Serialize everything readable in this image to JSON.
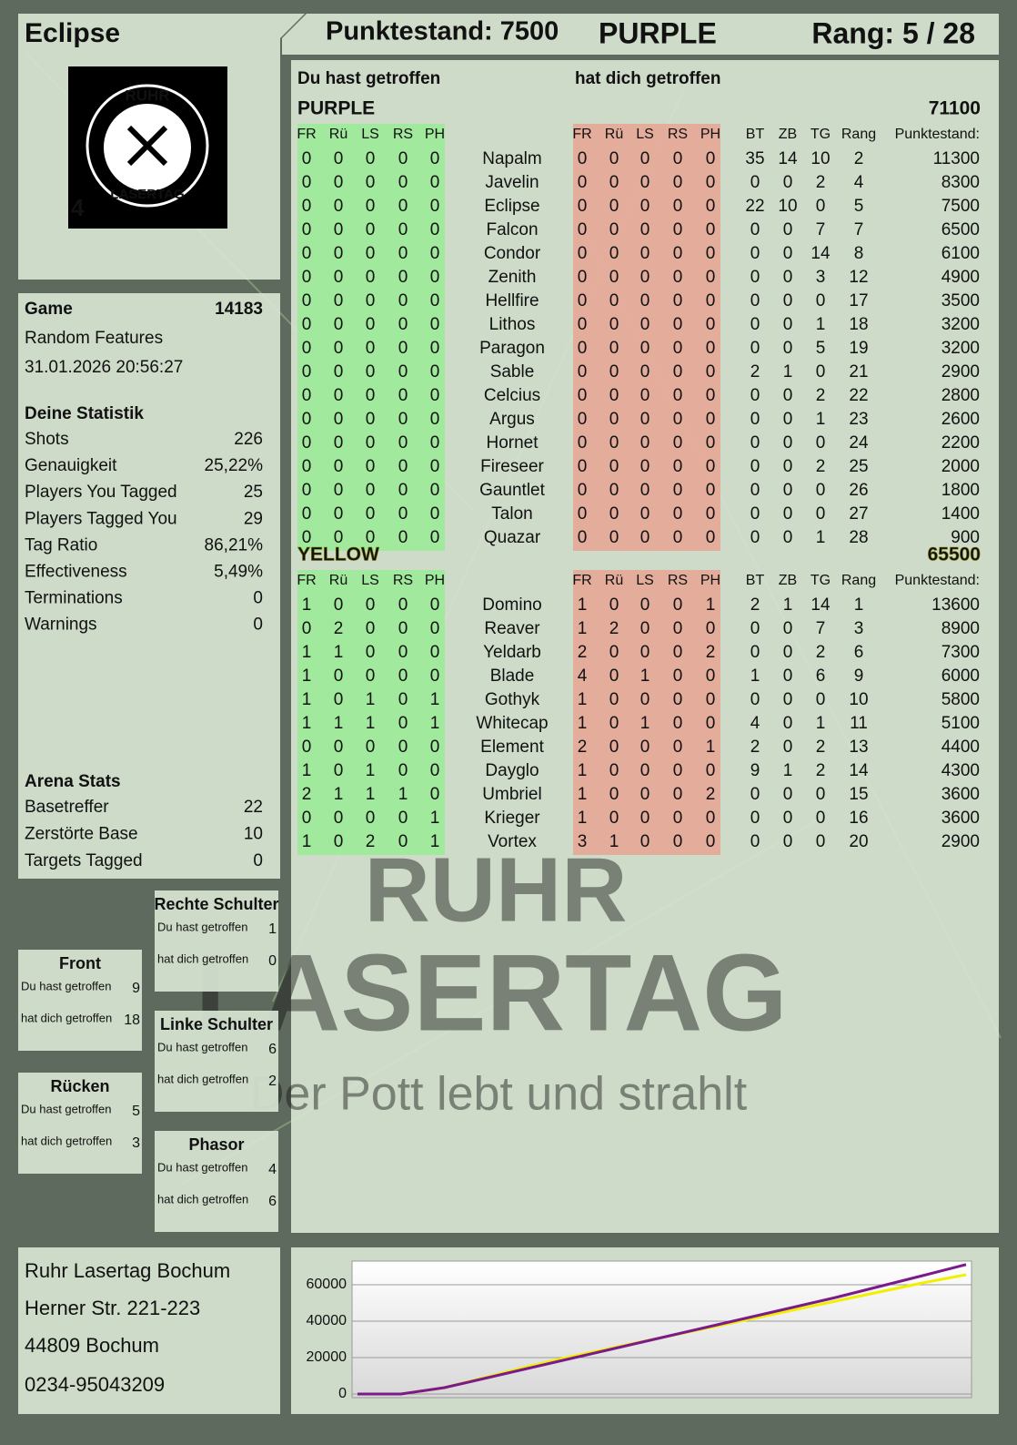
{
  "header": {
    "player": "Eclipse",
    "score": "Punktestand: 7500",
    "team": "PURPLE",
    "rank": "Rang: 5 / 28",
    "color": "#7b1a8b"
  },
  "logo": {
    "top": "RUHR",
    "bottom": "LASERTAG",
    "number": "4"
  },
  "game": {
    "label": "Game",
    "id": "14183",
    "mode": "Random Features",
    "date": "31.01.2026 20:56:27"
  },
  "stats": {
    "title": "Deine Statistik",
    "rows": [
      [
        "Shots",
        "226"
      ],
      [
        "Genauigkeit",
        "25,22%"
      ],
      [
        "Players You Tagged",
        "25"
      ],
      [
        "Players Tagged You",
        "29"
      ],
      [
        "Tag Ratio",
        "86,21%"
      ],
      [
        "Effectiveness",
        "5,49%"
      ],
      [
        "Terminations",
        "0"
      ],
      [
        "Warnings",
        "0"
      ]
    ]
  },
  "arena": {
    "title": "Arena Stats",
    "rows": [
      [
        "Basetreffer",
        "22"
      ],
      [
        "Zerstörte Base",
        "10"
      ],
      [
        "Targets Tagged",
        "0"
      ]
    ]
  },
  "zones": [
    {
      "title": "Rechte Schulter",
      "rows": [
        [
          "Du hast getroffen",
          "1"
        ],
        [
          "hat dich getroffen",
          "0"
        ]
      ]
    },
    {
      "title": "Front",
      "rows": [
        [
          "Du hast getroffen",
          "9"
        ],
        [
          "hat dich getroffen",
          "18"
        ]
      ]
    },
    {
      "title": "Linke Schulter",
      "rows": [
        [
          "Du hast getroffen",
          "6"
        ],
        [
          "hat dich getroffen",
          "2"
        ]
      ]
    },
    {
      "title": "Rücken",
      "rows": [
        [
          "Du hast getroffen",
          "5"
        ],
        [
          "hat dich getroffen",
          "3"
        ]
      ]
    },
    {
      "title": "Phasor",
      "rows": [
        [
          "Du hast getroffen",
          "4"
        ],
        [
          "hat dich getroffen",
          "6"
        ]
      ]
    }
  ],
  "address": [
    "Ruhr Lasertag Bochum",
    "Herner Str. 221-223",
    "44809 Bochum",
    "0234-95043209"
  ],
  "table": {
    "hit_heading": "Du hast getroffen",
    "got_heading": "hat dich getroffen",
    "hit_columns": [
      "FR",
      "Rü",
      "LS",
      "RS",
      "PH"
    ],
    "got_columns": [
      "FR",
      "Rü",
      "LS",
      "RS",
      "PH"
    ],
    "stat_columns": [
      "BT",
      "ZB",
      "TG",
      "Rang",
      "Punktestand:"
    ],
    "teams": [
      {
        "name": "PURPLE",
        "score": 71100,
        "color": "#7b1a8b",
        "players": [
          [
            "Napalm",
            [
              0,
              0,
              0,
              0,
              0
            ],
            [
              0,
              0,
              0,
              0,
              0
            ],
            [
              35,
              14,
              10,
              2,
              11300
            ]
          ],
          [
            "Javelin",
            [
              0,
              0,
              0,
              0,
              0
            ],
            [
              0,
              0,
              0,
              0,
              0
            ],
            [
              0,
              0,
              2,
              4,
              8300
            ]
          ],
          [
            "Eclipse",
            [
              0,
              0,
              0,
              0,
              0
            ],
            [
              0,
              0,
              0,
              0,
              0
            ],
            [
              22,
              10,
              0,
              5,
              7500
            ]
          ],
          [
            "Falcon",
            [
              0,
              0,
              0,
              0,
              0
            ],
            [
              0,
              0,
              0,
              0,
              0
            ],
            [
              0,
              0,
              7,
              7,
              6500
            ]
          ],
          [
            "Condor",
            [
              0,
              0,
              0,
              0,
              0
            ],
            [
              0,
              0,
              0,
              0,
              0
            ],
            [
              0,
              0,
              14,
              8,
              6100
            ]
          ],
          [
            "Zenith",
            [
              0,
              0,
              0,
              0,
              0
            ],
            [
              0,
              0,
              0,
              0,
              0
            ],
            [
              0,
              0,
              3,
              12,
              4900
            ]
          ],
          [
            "Hellfire",
            [
              0,
              0,
              0,
              0,
              0
            ],
            [
              0,
              0,
              0,
              0,
              0
            ],
            [
              0,
              0,
              0,
              17,
              3500
            ]
          ],
          [
            "Lithos",
            [
              0,
              0,
              0,
              0,
              0
            ],
            [
              0,
              0,
              0,
              0,
              0
            ],
            [
              0,
              0,
              1,
              18,
              3200
            ]
          ],
          [
            "Paragon",
            [
              0,
              0,
              0,
              0,
              0
            ],
            [
              0,
              0,
              0,
              0,
              0
            ],
            [
              0,
              0,
              5,
              19,
              3200
            ]
          ],
          [
            "Sable",
            [
              0,
              0,
              0,
              0,
              0
            ],
            [
              0,
              0,
              0,
              0,
              0
            ],
            [
              2,
              1,
              0,
              21,
              2900
            ]
          ],
          [
            "Celcius",
            [
              0,
              0,
              0,
              0,
              0
            ],
            [
              0,
              0,
              0,
              0,
              0
            ],
            [
              0,
              0,
              2,
              22,
              2800
            ]
          ],
          [
            "Argus",
            [
              0,
              0,
              0,
              0,
              0
            ],
            [
              0,
              0,
              0,
              0,
              0
            ],
            [
              0,
              0,
              1,
              23,
              2600
            ]
          ],
          [
            "Hornet",
            [
              0,
              0,
              0,
              0,
              0
            ],
            [
              0,
              0,
              0,
              0,
              0
            ],
            [
              0,
              0,
              0,
              24,
              2200
            ]
          ],
          [
            "Fireseer",
            [
              0,
              0,
              0,
              0,
              0
            ],
            [
              0,
              0,
              0,
              0,
              0
            ],
            [
              0,
              0,
              2,
              25,
              2000
            ]
          ],
          [
            "Gauntlet",
            [
              0,
              0,
              0,
              0,
              0
            ],
            [
              0,
              0,
              0,
              0,
              0
            ],
            [
              0,
              0,
              0,
              26,
              1800
            ]
          ],
          [
            "Talon",
            [
              0,
              0,
              0,
              0,
              0
            ],
            [
              0,
              0,
              0,
              0,
              0
            ],
            [
              0,
              0,
              0,
              27,
              1400
            ]
          ],
          [
            "Quazar",
            [
              0,
              0,
              0,
              0,
              0
            ],
            [
              0,
              0,
              0,
              0,
              0
            ],
            [
              0,
              0,
              1,
              28,
              900
            ]
          ]
        ]
      },
      {
        "name": "YELLOW",
        "score": 65500,
        "color": "#e8e800",
        "players": [
          [
            "Domino",
            [
              1,
              0,
              0,
              0,
              0
            ],
            [
              1,
              0,
              0,
              0,
              1
            ],
            [
              2,
              1,
              14,
              1,
              13600
            ]
          ],
          [
            "Reaver",
            [
              0,
              2,
              0,
              0,
              0
            ],
            [
              1,
              2,
              0,
              0,
              0
            ],
            [
              0,
              0,
              7,
              3,
              8900
            ]
          ],
          [
            "Yeldarb",
            [
              1,
              1,
              0,
              0,
              0
            ],
            [
              2,
              0,
              0,
              0,
              2
            ],
            [
              0,
              0,
              2,
              6,
              7300
            ]
          ],
          [
            "Blade",
            [
              1,
              0,
              0,
              0,
              0
            ],
            [
              4,
              0,
              1,
              0,
              0
            ],
            [
              1,
              0,
              6,
              9,
              6000
            ]
          ],
          [
            "Gothyk",
            [
              1,
              0,
              1,
              0,
              1
            ],
            [
              1,
              0,
              0,
              0,
              0
            ],
            [
              0,
              0,
              0,
              10,
              5800
            ]
          ],
          [
            "Whitecap",
            [
              1,
              1,
              1,
              0,
              1
            ],
            [
              1,
              0,
              1,
              0,
              0
            ],
            [
              4,
              0,
              1,
              11,
              5100
            ]
          ],
          [
            "Element",
            [
              0,
              0,
              0,
              0,
              0
            ],
            [
              2,
              0,
              0,
              0,
              1
            ],
            [
              2,
              0,
              2,
              13,
              4400
            ]
          ],
          [
            "Dayglo",
            [
              1,
              0,
              1,
              0,
              0
            ],
            [
              1,
              0,
              0,
              0,
              0
            ],
            [
              9,
              1,
              2,
              14,
              4300
            ]
          ],
          [
            "Umbriel",
            [
              2,
              1,
              1,
              1,
              0
            ],
            [
              1,
              0,
              0,
              0,
              2
            ],
            [
              0,
              0,
              0,
              15,
              3600
            ]
          ],
          [
            "Krieger",
            [
              0,
              0,
              0,
              0,
              1
            ],
            [
              1,
              0,
              0,
              0,
              0
            ],
            [
              0,
              0,
              0,
              16,
              3600
            ]
          ],
          [
            "Vortex",
            [
              1,
              0,
              2,
              0,
              1
            ],
            [
              3,
              1,
              0,
              0,
              0
            ],
            [
              0,
              0,
              0,
              20,
              2900
            ]
          ]
        ]
      }
    ]
  },
  "watermark": {
    "line1": "RUHR",
    "line2": "LASERTAG",
    "slogan": "Der Pott lebt und strahlt"
  },
  "chart_data": {
    "type": "line",
    "ylim": [
      0,
      73000
    ],
    "yticks": [
      0,
      20000,
      40000,
      60000
    ],
    "grid": true,
    "series": [
      {
        "color": "#7b1a8b",
        "values": [
          0,
          0,
          3500,
          9000,
          14500,
          20000,
          25500,
          31000,
          36500,
          42000,
          47500,
          53000,
          59000,
          65000,
          71100
        ]
      },
      {
        "color": "#f0f000",
        "values": [
          0,
          0,
          3500,
          9500,
          15500,
          21000,
          26000,
          31000,
          36000,
          41000,
          46000,
          51000,
          56000,
          61000,
          65500
        ]
      }
    ]
  }
}
